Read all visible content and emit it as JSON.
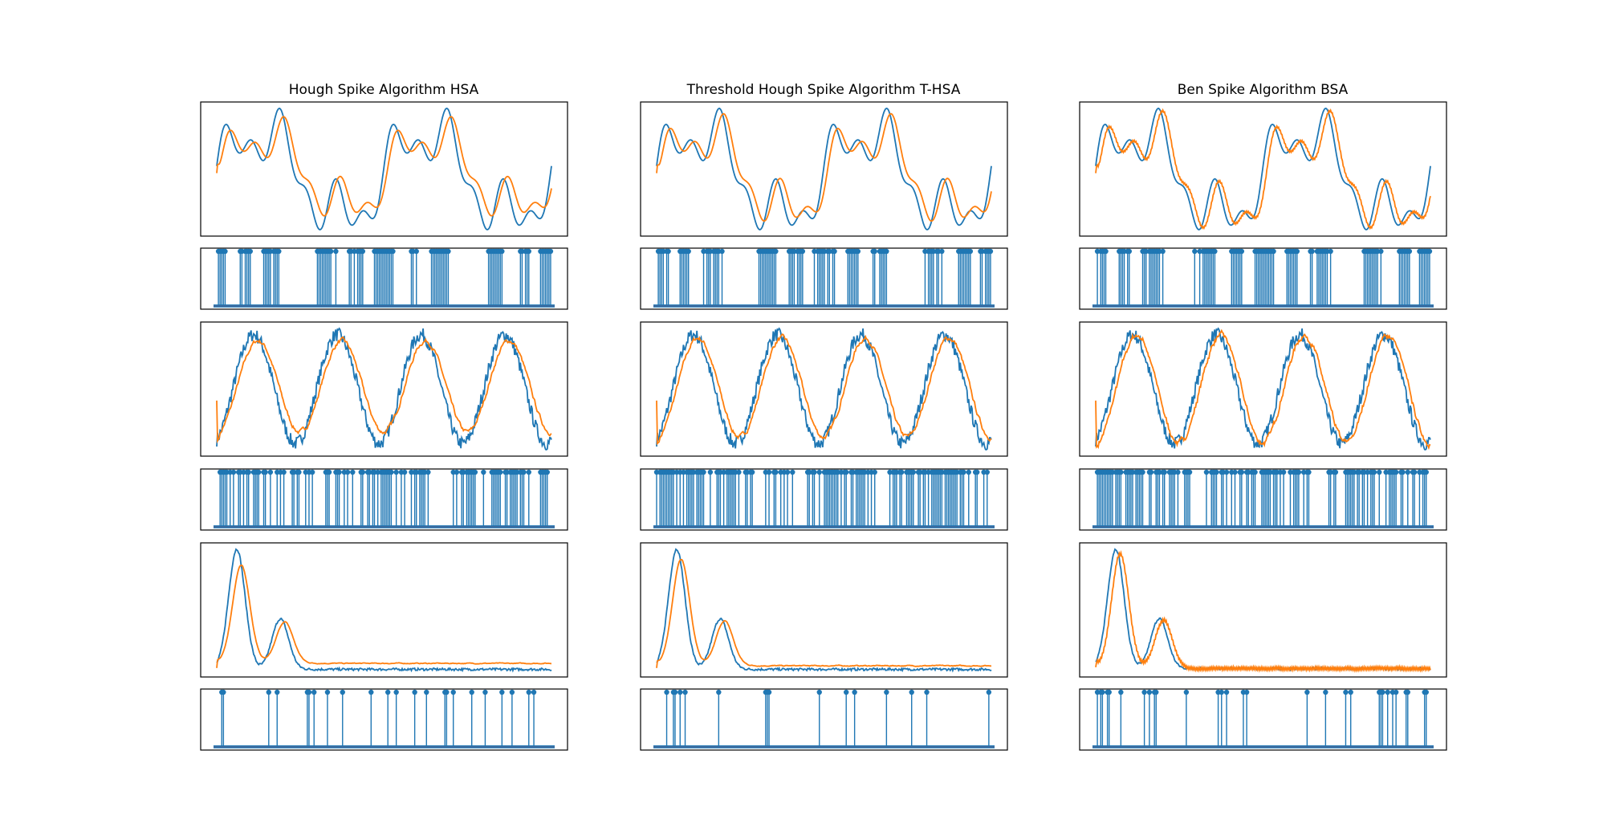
{
  "figure": {
    "columns": [
      {
        "title": "Hough Spike Algorithm HSA"
      },
      {
        "title": "Threshold Hough Spike Algorithm T-HSA"
      },
      {
        "title": "Ben Spike Algorithm BSA"
      }
    ]
  },
  "colors": {
    "original": "#1f77b4",
    "reconstructed": "#ff7f0e",
    "spike_baseline": "#d62728"
  },
  "chart_data": [
    {
      "type": "line",
      "signal": "multi-sine",
      "algorithm": "HSA",
      "title": "Hough Spike Algorithm HSA",
      "xlabel": "",
      "ylabel": "",
      "series": [
        {
          "role": "original",
          "key": "A",
          "color": "#1f77b4"
        },
        {
          "role": "reconstructed",
          "key": "A_HSA",
          "color": "#ff7f0e"
        }
      ],
      "spikes": {
        "type": "stem",
        "density": 0.8,
        "color": "#1f77b4",
        "baseline_color": "#d62728"
      }
    },
    {
      "type": "line",
      "signal": "multi-sine",
      "algorithm": "T-HSA",
      "title": "Threshold Hough Spike Algorithm T-HSA",
      "series": [
        {
          "role": "original",
          "key": "A",
          "color": "#1f77b4"
        },
        {
          "role": "reconstructed",
          "key": "A_THSA",
          "color": "#ff7f0e"
        }
      ],
      "spikes": {
        "type": "stem",
        "density": 0.85,
        "color": "#1f77b4",
        "baseline_color": "#d62728"
      }
    },
    {
      "type": "line",
      "signal": "multi-sine",
      "algorithm": "BSA",
      "title": "Ben Spike Algorithm BSA",
      "series": [
        {
          "role": "original",
          "key": "A",
          "color": "#1f77b4"
        },
        {
          "role": "reconstructed",
          "key": "A_BSA",
          "color": "#ff7f0e"
        }
      ],
      "spikes": {
        "type": "stem",
        "density": 0.9,
        "color": "#1f77b4",
        "baseline_color": "#d62728"
      }
    },
    {
      "type": "line",
      "signal": "noisy-sine",
      "algorithm": "HSA",
      "series": [
        {
          "role": "original",
          "key": "B",
          "color": "#1f77b4"
        },
        {
          "role": "reconstructed",
          "key": "B_HSA",
          "color": "#ff7f0e"
        }
      ],
      "spikes": {
        "type": "stem",
        "density": 0.75,
        "color": "#1f77b4",
        "baseline_color": "#d62728"
      }
    },
    {
      "type": "line",
      "signal": "noisy-sine",
      "algorithm": "T-HSA",
      "series": [
        {
          "role": "original",
          "key": "B",
          "color": "#1f77b4"
        },
        {
          "role": "reconstructed",
          "key": "B_THSA",
          "color": "#ff7f0e"
        }
      ],
      "spikes": {
        "type": "stem",
        "density": 0.8,
        "color": "#1f77b4",
        "baseline_color": "#d62728"
      }
    },
    {
      "type": "line",
      "signal": "noisy-sine",
      "algorithm": "BSA",
      "series": [
        {
          "role": "original",
          "key": "B",
          "color": "#1f77b4"
        },
        {
          "role": "reconstructed",
          "key": "B_BSA",
          "color": "#ff7f0e"
        }
      ],
      "spikes": {
        "type": "stem",
        "density": 0.8,
        "color": "#1f77b4",
        "baseline_color": "#d62728"
      }
    },
    {
      "type": "line",
      "signal": "double-peak",
      "algorithm": "HSA",
      "series": [
        {
          "role": "original",
          "key": "C",
          "color": "#1f77b4"
        },
        {
          "role": "reconstructed",
          "key": "C_HSA",
          "color": "#ff7f0e"
        }
      ],
      "spikes": {
        "type": "stem",
        "density": 0.2,
        "color": "#1f77b4",
        "baseline_color": "#d62728"
      }
    },
    {
      "type": "line",
      "signal": "double-peak",
      "algorithm": "T-HSA",
      "series": [
        {
          "role": "original",
          "key": "C",
          "color": "#1f77b4"
        },
        {
          "role": "reconstructed",
          "key": "C_THSA",
          "color": "#ff7f0e"
        }
      ],
      "spikes": {
        "type": "stem",
        "density": 0.2,
        "color": "#1f77b4",
        "baseline_color": "#d62728"
      }
    },
    {
      "type": "line",
      "signal": "double-peak",
      "algorithm": "BSA",
      "series": [
        {
          "role": "original",
          "key": "C",
          "color": "#1f77b4"
        },
        {
          "role": "reconstructed",
          "key": "C_BSA",
          "color": "#ff7f0e"
        }
      ],
      "spikes": {
        "type": "stem",
        "density": 0.25,
        "color": "#1f77b4",
        "baseline_color": "#d62728"
      }
    }
  ]
}
